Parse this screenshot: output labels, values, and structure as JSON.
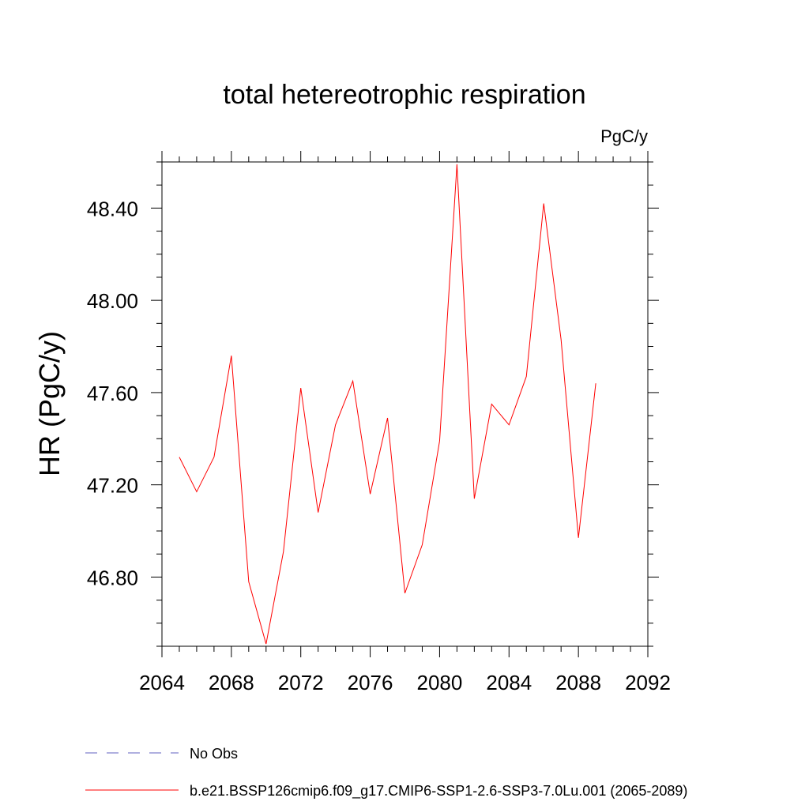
{
  "chart_data": {
    "type": "line",
    "title": "total hetereotrophic respiration",
    "units_label": "PgC/y",
    "ylabel": "HR  (PgC/y)",
    "xlabel": "",
    "xlim": [
      2064,
      2092
    ],
    "ylim": [
      46.5,
      48.6
    ],
    "x_ticks": [
      2064,
      2068,
      2072,
      2076,
      2080,
      2084,
      2088,
      2092
    ],
    "x_tick_labels": [
      "2064",
      "2068",
      "2072",
      "2076",
      "2080",
      "2084",
      "2088",
      "2092"
    ],
    "y_ticks": [
      46.8,
      47.2,
      47.6,
      48.0,
      48.4
    ],
    "y_tick_labels": [
      "46.80",
      "47.20",
      "47.60",
      "48.00",
      "48.40"
    ],
    "grid": false,
    "legend_position": "bottom",
    "x": [
      2065,
      2066,
      2067,
      2068,
      2069,
      2070,
      2071,
      2072,
      2073,
      2074,
      2075,
      2076,
      2077,
      2078,
      2079,
      2080,
      2081,
      2082,
      2083,
      2084,
      2085,
      2086,
      2087,
      2088,
      2089
    ],
    "series": [
      {
        "name": "b.e21.BSSP126cmip6.f09_g17.CMIP6-SSP1-2.6-SSP3-7.0Lu.001 (2065-2089)",
        "color": "#ff0000",
        "style": "solid",
        "values": [
          47.32,
          47.17,
          47.32,
          47.76,
          46.78,
          46.51,
          46.91,
          47.62,
          47.08,
          47.46,
          47.65,
          47.16,
          47.49,
          46.73,
          46.94,
          47.39,
          48.59,
          47.14,
          47.55,
          47.46,
          47.67,
          48.42,
          47.83,
          46.97,
          47.64
        ]
      }
    ],
    "legend": [
      {
        "label": "No Obs",
        "color": "#6060c0",
        "style": "dashed"
      },
      {
        "label": "b.e21.BSSP126cmip6.f09_g17.CMIP6-SSP1-2.6-SSP3-7.0Lu.001 (2065-2089)",
        "color": "#ff0000",
        "style": "solid"
      }
    ]
  }
}
